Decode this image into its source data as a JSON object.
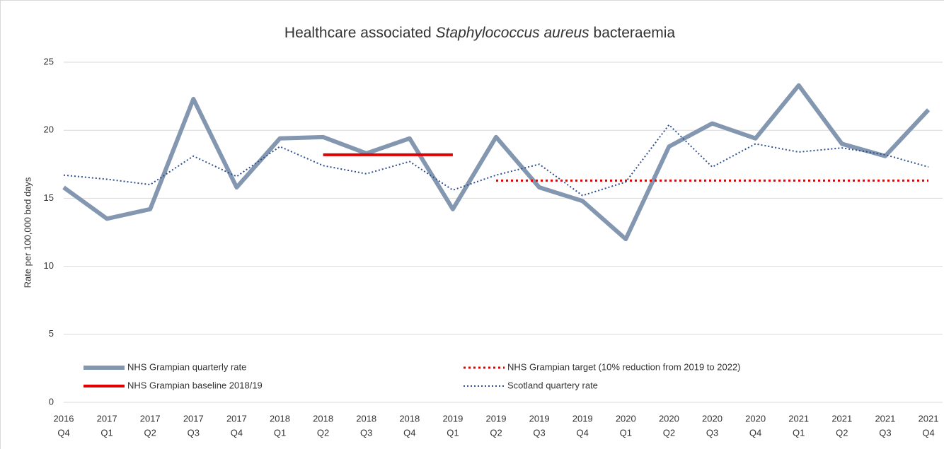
{
  "chart_data": {
    "type": "line",
    "title": [
      "Healthcare associated",
      "Staphylococcus aureus",
      "bacteraemia"
    ],
    "ylabel": "Rate per 100,000 bed days",
    "categories": [
      [
        "2016",
        "Q4"
      ],
      [
        "2017",
        "Q1"
      ],
      [
        "2017",
        "Q2"
      ],
      [
        "2017",
        "Q3"
      ],
      [
        "2017",
        "Q4"
      ],
      [
        "2018",
        "Q1"
      ],
      [
        "2018",
        "Q2"
      ],
      [
        "2018",
        "Q3"
      ],
      [
        "2018",
        "Q4"
      ],
      [
        "2019",
        "Q1"
      ],
      [
        "2019",
        "Q2"
      ],
      [
        "2019",
        "Q3"
      ],
      [
        "2019",
        "Q4"
      ],
      [
        "2020",
        "Q1"
      ],
      [
        "2020",
        "Q2"
      ],
      [
        "2020",
        "Q3"
      ],
      [
        "2020",
        "Q4"
      ],
      [
        "2021",
        "Q1"
      ],
      [
        "2021",
        "Q2"
      ],
      [
        "2021",
        "Q3"
      ],
      [
        "2021",
        "Q4"
      ]
    ],
    "series": [
      {
        "name": "NHS Grampian quarterly rate",
        "color": "#8497b0",
        "style": "solid",
        "values": [
          15.8,
          13.5,
          14.2,
          22.3,
          15.8,
          19.4,
          19.5,
          18.3,
          19.4,
          14.2,
          19.5,
          15.8,
          14.8,
          12.0,
          18.8,
          20.5,
          19.4,
          23.3,
          19.0,
          18.1,
          21.5
        ]
      },
      {
        "name": "NHS Grampian target (10% reduction from 2019 to 2022)",
        "color": "#e00000",
        "style": "dotted",
        "values": [
          null,
          null,
          null,
          null,
          null,
          null,
          null,
          null,
          null,
          null,
          16.3,
          16.3,
          16.3,
          16.3,
          16.3,
          16.3,
          16.3,
          16.3,
          16.3,
          16.3,
          16.3
        ]
      },
      {
        "name": "NHS Grampian baseline 2018/19",
        "color": "#e00000",
        "style": "solid",
        "values": [
          null,
          null,
          null,
          null,
          null,
          null,
          18.2,
          18.2,
          18.2,
          18.2,
          null,
          null,
          null,
          null,
          null,
          null,
          null,
          null,
          null,
          null,
          null
        ]
      },
      {
        "name": "Scotland quartery rate",
        "color": "#2f4f8f",
        "style": "dotted",
        "values": [
          16.7,
          16.4,
          16.0,
          18.1,
          16.6,
          18.8,
          17.4,
          16.8,
          17.7,
          15.6,
          16.7,
          17.5,
          15.2,
          16.2,
          20.4,
          17.3,
          19.0,
          18.4,
          18.7,
          18.2,
          17.3
        ]
      }
    ],
    "ylim": [
      0,
      25
    ],
    "yticks": [
      0,
      5,
      10,
      15,
      20,
      25
    ],
    "grid": true
  }
}
